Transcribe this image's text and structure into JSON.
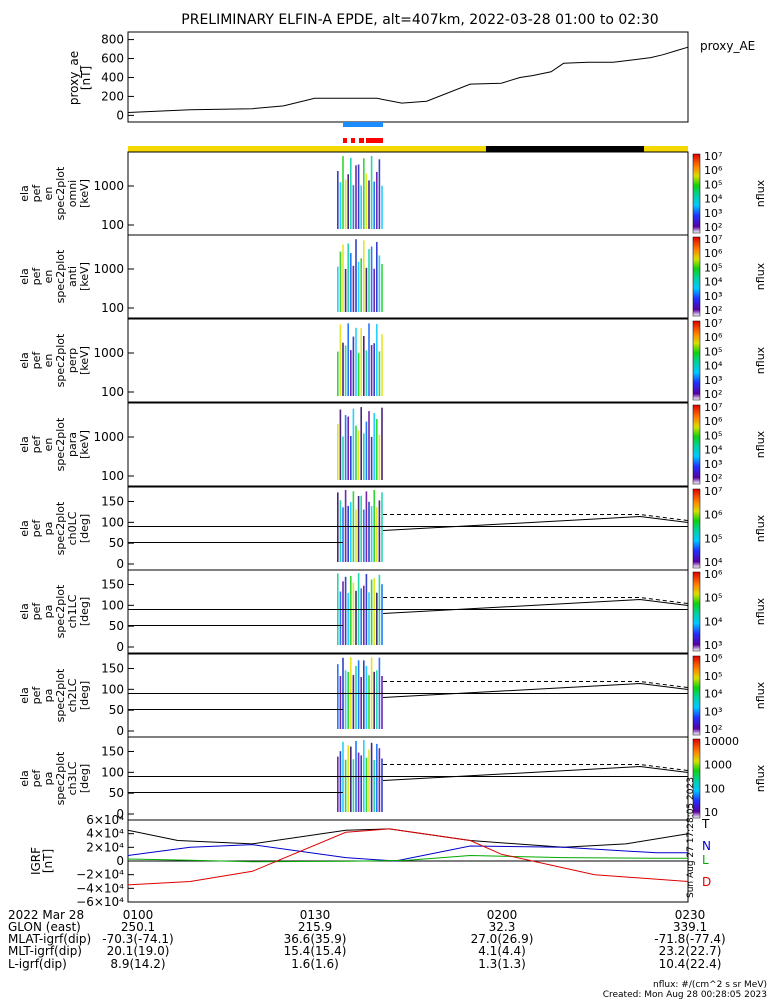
{
  "title": "PRELIMINARY ELFIN-A EPDE, alt=407km, 2022-03-28 01:00 to 02:30",
  "chart_data": [
    {
      "type": "line",
      "panel": "proxy_ae",
      "ylabel": [
        "proxy_ae",
        "[nT]"
      ],
      "legend": "proxy_AE",
      "yticks": [
        "800",
        "600",
        "400",
        "200",
        "0"
      ],
      "ylim": [
        -70,
        880
      ],
      "x_minutes": [
        0,
        10,
        20,
        25,
        30,
        35,
        40,
        44,
        48,
        55,
        60,
        63,
        65,
        68,
        70,
        74,
        78,
        84,
        86,
        88,
        90
      ],
      "values": [
        30,
        60,
        70,
        100,
        180,
        180,
        180,
        130,
        150,
        330,
        340,
        400,
        420,
        460,
        550,
        560,
        560,
        610,
        640,
        680,
        720
      ]
    },
    {
      "type": "heatmap",
      "panel": "ela_pef_en_spec2plot_omni",
      "ylabel": [
        "ela",
        "pef",
        "en",
        "spec2plot",
        "omni",
        "[keV]"
      ],
      "yticks": [
        "1000",
        "100"
      ],
      "zlabel": "nflux",
      "zticks": [
        "10^7",
        "10^6",
        "10^5",
        "10^4",
        "10^3",
        "10^2"
      ]
    },
    {
      "type": "heatmap",
      "panel": "ela_pef_en_spec2plot_anti",
      "ylabel": [
        "ela",
        "pef",
        "en",
        "spec2plot",
        "anti",
        "[keV]"
      ],
      "yticks": [
        "1000",
        "100"
      ],
      "zlabel": "nflux",
      "zticks": [
        "10^7",
        "10^6",
        "10^5",
        "10^4",
        "10^3",
        "10^2"
      ]
    },
    {
      "type": "heatmap",
      "panel": "ela_pef_en_spec2plot_perp",
      "ylabel": [
        "ela",
        "pef",
        "en",
        "spec2plot",
        "perp",
        "[keV]"
      ],
      "yticks": [
        "1000",
        "100"
      ],
      "zlabel": "nflux",
      "zticks": [
        "10^7",
        "10^6",
        "10^5",
        "10^4",
        "10^3",
        "10^2"
      ]
    },
    {
      "type": "heatmap",
      "panel": "ela_pef_en_spec2plot_para",
      "ylabel": [
        "ela",
        "pef",
        "en",
        "spec2plot",
        "para",
        "[keV]"
      ],
      "yticks": [
        "1000",
        "100"
      ],
      "zlabel": "nflux",
      "zticks": [
        "10^7",
        "10^6",
        "10^5",
        "10^4",
        "10^3",
        "10^2"
      ]
    },
    {
      "type": "heatmap",
      "panel": "ela_pef_pa_spec2plot_ch0LC",
      "ylabel": [
        "ela",
        "pef",
        "pa",
        "spec2plot",
        "ch0LC",
        "[deg]"
      ],
      "yticks": [
        "150",
        "100",
        "50",
        "0"
      ],
      "ylim": [
        0,
        180
      ],
      "zlabel": "nflux",
      "zticks": [
        "10^7",
        "10^6",
        "10^5",
        "10^4"
      ]
    },
    {
      "type": "heatmap",
      "panel": "ela_pef_pa_spec2plot_ch1LC",
      "ylabel": [
        "ela",
        "pef",
        "pa",
        "spec2plot",
        "ch1LC",
        "[deg]"
      ],
      "yticks": [
        "150",
        "100",
        "50",
        "0"
      ],
      "ylim": [
        0,
        180
      ],
      "zlabel": "nflux",
      "zticks": [
        "10^6",
        "10^5",
        "10^4",
        "10^3"
      ]
    },
    {
      "type": "heatmap",
      "panel": "ela_pef_pa_spec2plot_ch2LC",
      "ylabel": [
        "ela",
        "pef",
        "pa",
        "spec2plot",
        "ch2LC",
        "[deg]"
      ],
      "yticks": [
        "150",
        "100",
        "50",
        "0"
      ],
      "ylim": [
        0,
        180
      ],
      "zlabel": "nflux",
      "zticks": [
        "10^6",
        "10^5",
        "10^4",
        "10^3",
        "10^2"
      ]
    },
    {
      "type": "heatmap",
      "panel": "ela_pef_pa_spec2plot_ch3LC",
      "ylabel": [
        "ela",
        "pef",
        "pa",
        "spec2plot",
        "ch3LC",
        "[deg]"
      ],
      "yticks": [
        "150",
        "100",
        "50",
        "0"
      ],
      "ylim": [
        0,
        180
      ],
      "zlabel": "nflux",
      "zticks": [
        "10000",
        "1000",
        "100",
        "10"
      ]
    },
    {
      "type": "line",
      "panel": "IGRF",
      "ylabel": [
        "IGRF",
        "[nT]"
      ],
      "yticks": [
        "6×10⁴",
        "4×10⁴",
        "2×10⁴",
        "0",
        "−2×10⁴",
        "−4×10⁴",
        "−6×10⁴"
      ],
      "ylim": [
        -60000,
        60000
      ],
      "series": [
        {
          "name": "T",
          "color": "#000000",
          "x_minutes": [
            0,
            8,
            20,
            35,
            42,
            55,
            70,
            80,
            90
          ],
          "values": [
            45000,
            30000,
            25000,
            45000,
            47000,
            30000,
            20000,
            25000,
            40000
          ]
        },
        {
          "name": "N",
          "color": "#0000cc",
          "x_minutes": [
            0,
            10,
            20,
            35,
            43,
            55,
            70,
            85,
            90
          ],
          "values": [
            8000,
            20000,
            24000,
            5000,
            0,
            22000,
            20000,
            12000,
            12000
          ]
        },
        {
          "name": "L",
          "color": "#00aa00",
          "x_minutes": [
            0,
            10,
            20,
            35,
            45,
            55,
            70,
            85,
            90
          ],
          "values": [
            3000,
            1000,
            -1000,
            -500,
            1000,
            8000,
            5000,
            4000,
            4000
          ]
        },
        {
          "name": "D",
          "color": "#dd0000",
          "x_minutes": [
            0,
            10,
            20,
            35,
            42,
            55,
            60,
            75,
            90
          ],
          "values": [
            -35000,
            -30000,
            -15000,
            42000,
            47000,
            30000,
            10000,
            -20000,
            -30000
          ]
        }
      ]
    }
  ],
  "ephem_bars": {
    "blue_label": "",
    "yellow_black_red": "",
    "colors": {
      "blue": "#1a8cff",
      "red": "#ff0000",
      "yellow": "#f5d800",
      "black": "#000000"
    }
  },
  "footer": {
    "rows": [
      {
        "label": "2022 Mar 28",
        "values": [
          "0100",
          "0130",
          "0200",
          "0230"
        ]
      },
      {
        "label": "GLON (east)",
        "values": [
          "250.1",
          "215.9",
          "32.3",
          "339.1"
        ]
      },
      {
        "label": "MLAT-igrf(dip)",
        "values": [
          "-70.3(-74.1)",
          "36.6(35.9)",
          "27.0(26.9)",
          "-71.8(-77.4)"
        ]
      },
      {
        "label": "MLT-igrf(dip)",
        "values": [
          "20.1(19.0)",
          "15.4(15.4)",
          "4.1(4.4)",
          "23.2(22.7)"
        ]
      },
      {
        "label": "L-igrf(dip)",
        "values": [
          "8.9(14.2)",
          "1.6(1.6)",
          "1.3(1.3)",
          "10.4(22.4)"
        ]
      }
    ],
    "units_note": "nflux: #/(cm^2 s sr MeV)",
    "created": "Created: Mon Aug 28 00:28:05 2023",
    "side_stamp": "Sun Aug 27 17:28:05 2023"
  }
}
